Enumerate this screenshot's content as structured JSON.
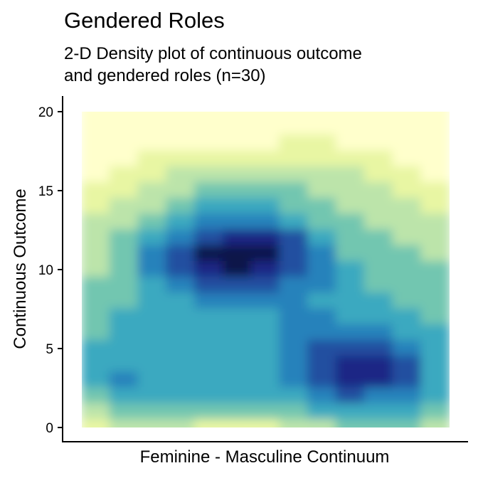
{
  "chart_data": {
    "type": "density2d",
    "title": "Gendered Roles",
    "subtitle": [
      "2-D Density plot of continuous outcome",
      "and gendered roles (n=30)"
    ],
    "x_label": "Feminine - Masculine Continuum",
    "y_label": "Continuous Outcome",
    "ylim": [
      0,
      20
    ],
    "yticks": [
      0,
      5,
      10,
      15,
      20
    ],
    "colors": [
      "#ffffcc",
      "#e8f6a3",
      "#bce4aa",
      "#72c6b0",
      "#3aa9c0",
      "#2582bb",
      "#2150a0",
      "#1f2585",
      "#0a1648"
    ],
    "z": [
      [
        0,
        0,
        0,
        0,
        0,
        0,
        0,
        0,
        0,
        0,
        0,
        0,
        0
      ],
      [
        0,
        0,
        0,
        0,
        0,
        0,
        0,
        0,
        0,
        0,
        0,
        0,
        0
      ],
      [
        0,
        0,
        0,
        0,
        0,
        0,
        0,
        1,
        1,
        0,
        0,
        0,
        0
      ],
      [
        0,
        0,
        1,
        1,
        1,
        1,
        1,
        1,
        1,
        1,
        1,
        0,
        0
      ],
      [
        0,
        1,
        1,
        2,
        2,
        2,
        2,
        2,
        2,
        2,
        1,
        1,
        0
      ],
      [
        1,
        1,
        2,
        2,
        3,
        3,
        3,
        3,
        2,
        2,
        2,
        1,
        1
      ],
      [
        1,
        2,
        2,
        3,
        4,
        4,
        4,
        3,
        3,
        2,
        2,
        2,
        1
      ],
      [
        2,
        2,
        3,
        4,
        5,
        5,
        5,
        4,
        3,
        3,
        2,
        2,
        2
      ],
      [
        2,
        3,
        4,
        5,
        6,
        7,
        7,
        6,
        4,
        3,
        3,
        2,
        2
      ],
      [
        2,
        3,
        5,
        6,
        8,
        8,
        8,
        6,
        5,
        3,
        3,
        3,
        2
      ],
      [
        2,
        3,
        5,
        6,
        7,
        8,
        7,
        6,
        5,
        4,
        3,
        3,
        3
      ],
      [
        3,
        3,
        4,
        5,
        6,
        6,
        6,
        5,
        5,
        4,
        3,
        3,
        3
      ],
      [
        3,
        3,
        4,
        4,
        5,
        5,
        5,
        5,
        4,
        4,
        4,
        3,
        3
      ],
      [
        3,
        4,
        4,
        4,
        4,
        4,
        4,
        5,
        5,
        4,
        4,
        4,
        3
      ],
      [
        3,
        4,
        4,
        4,
        4,
        4,
        4,
        5,
        5,
        5,
        5,
        4,
        4
      ],
      [
        4,
        4,
        4,
        4,
        4,
        4,
        4,
        5,
        6,
        6,
        6,
        5,
        4
      ],
      [
        4,
        4,
        4,
        4,
        4,
        4,
        4,
        5,
        6,
        7,
        7,
        6,
        4
      ],
      [
        4,
        5,
        4,
        4,
        4,
        4,
        4,
        5,
        6,
        7,
        7,
        6,
        4
      ],
      [
        3,
        4,
        4,
        4,
        4,
        4,
        4,
        4,
        5,
        6,
        5,
        5,
        4
      ],
      [
        2,
        3,
        3,
        3,
        3,
        3,
        3,
        3,
        4,
        4,
        4,
        4,
        3
      ],
      [
        1,
        2,
        2,
        2,
        1,
        1,
        1,
        2,
        2,
        3,
        3,
        3,
        2
      ]
    ]
  }
}
